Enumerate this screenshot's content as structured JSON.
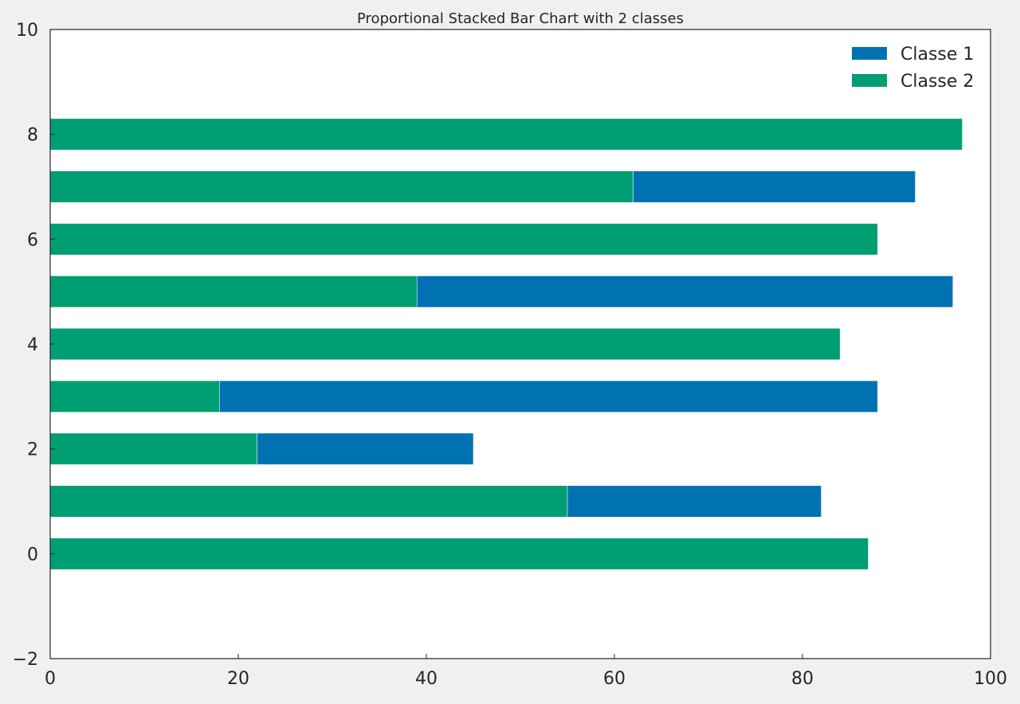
{
  "chart_data": {
    "type": "bar",
    "orientation": "horizontal",
    "stacked": true,
    "title": "Proportional Stacked Bar Chart with 2 classes",
    "xlabel": "",
    "ylabel": "",
    "xlim": [
      0,
      100
    ],
    "ylim": [
      -2,
      10
    ],
    "xticks": [
      0,
      20,
      40,
      60,
      80,
      100
    ],
    "yticks": [
      -2,
      0,
      2,
      4,
      6,
      8,
      10
    ],
    "ytick_labels": [
      "−2",
      "0",
      "2",
      "4",
      "6",
      "8",
      "10"
    ],
    "categories": [
      0,
      1,
      2,
      3,
      4,
      5,
      6,
      7,
      8
    ],
    "bar_height": 0.6,
    "grid": false,
    "legend_position": "top-right",
    "series": [
      {
        "name": "Classe 2",
        "color": "#009e73",
        "values": [
          87,
          55,
          22,
          18,
          84,
          39,
          88,
          62,
          97
        ]
      },
      {
        "name": "Classe 1",
        "color": "#0072b2",
        "values": [
          0,
          27,
          23,
          70,
          0,
          57,
          0,
          30,
          0
        ]
      }
    ],
    "legend": [
      {
        "label": "Classe 1",
        "color": "#0072b2"
      },
      {
        "label": "Classe 2",
        "color": "#009e73"
      }
    ]
  }
}
